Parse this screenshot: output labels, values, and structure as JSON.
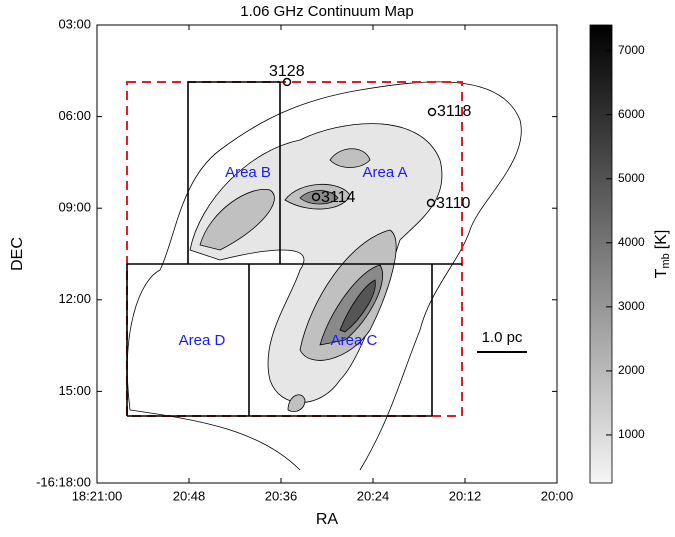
{
  "chart_data": {
    "type": "contour",
    "title": "1.06 GHz Continuum Map",
    "x_label": "RA",
    "y_label": "DEC",
    "xlim": [
      60,
      0
    ],
    "xticks": [
      {
        "value": 60,
        "label": "18:21:00"
      },
      {
        "value": 48,
        "label": "20:48"
      },
      {
        "value": 36,
        "label": "20:36"
      },
      {
        "value": 24,
        "label": "20:24"
      },
      {
        "value": 12,
        "label": "20:12"
      },
      {
        "value": 0,
        "label": "20:00"
      }
    ],
    "ylim": [
      18,
      3
    ],
    "yticks": [
      {
        "value": 3,
        "label": "03:00"
      },
      {
        "value": 6,
        "label": "06:00"
      },
      {
        "value": 9,
        "label": "09:00"
      },
      {
        "value": 12,
        "label": "12:00"
      },
      {
        "value": 15,
        "label": "15:00"
      },
      {
        "value": 18,
        "label": "-16:18:00"
      }
    ],
    "colorbar": {
      "label": {
        "main": "T",
        "sub": "mb",
        "unit": "[K]"
      },
      "lim": [
        250,
        7400
      ],
      "ticks": [
        1000,
        2000,
        3000,
        4000,
        5000,
        6000,
        7000
      ]
    },
    "areas": [
      "Area A",
      "Area B",
      "Area C",
      "Area D"
    ],
    "sources": [
      "3128",
      "3118",
      "3114",
      "3110"
    ],
    "scale_bar": "1.0 pc"
  }
}
